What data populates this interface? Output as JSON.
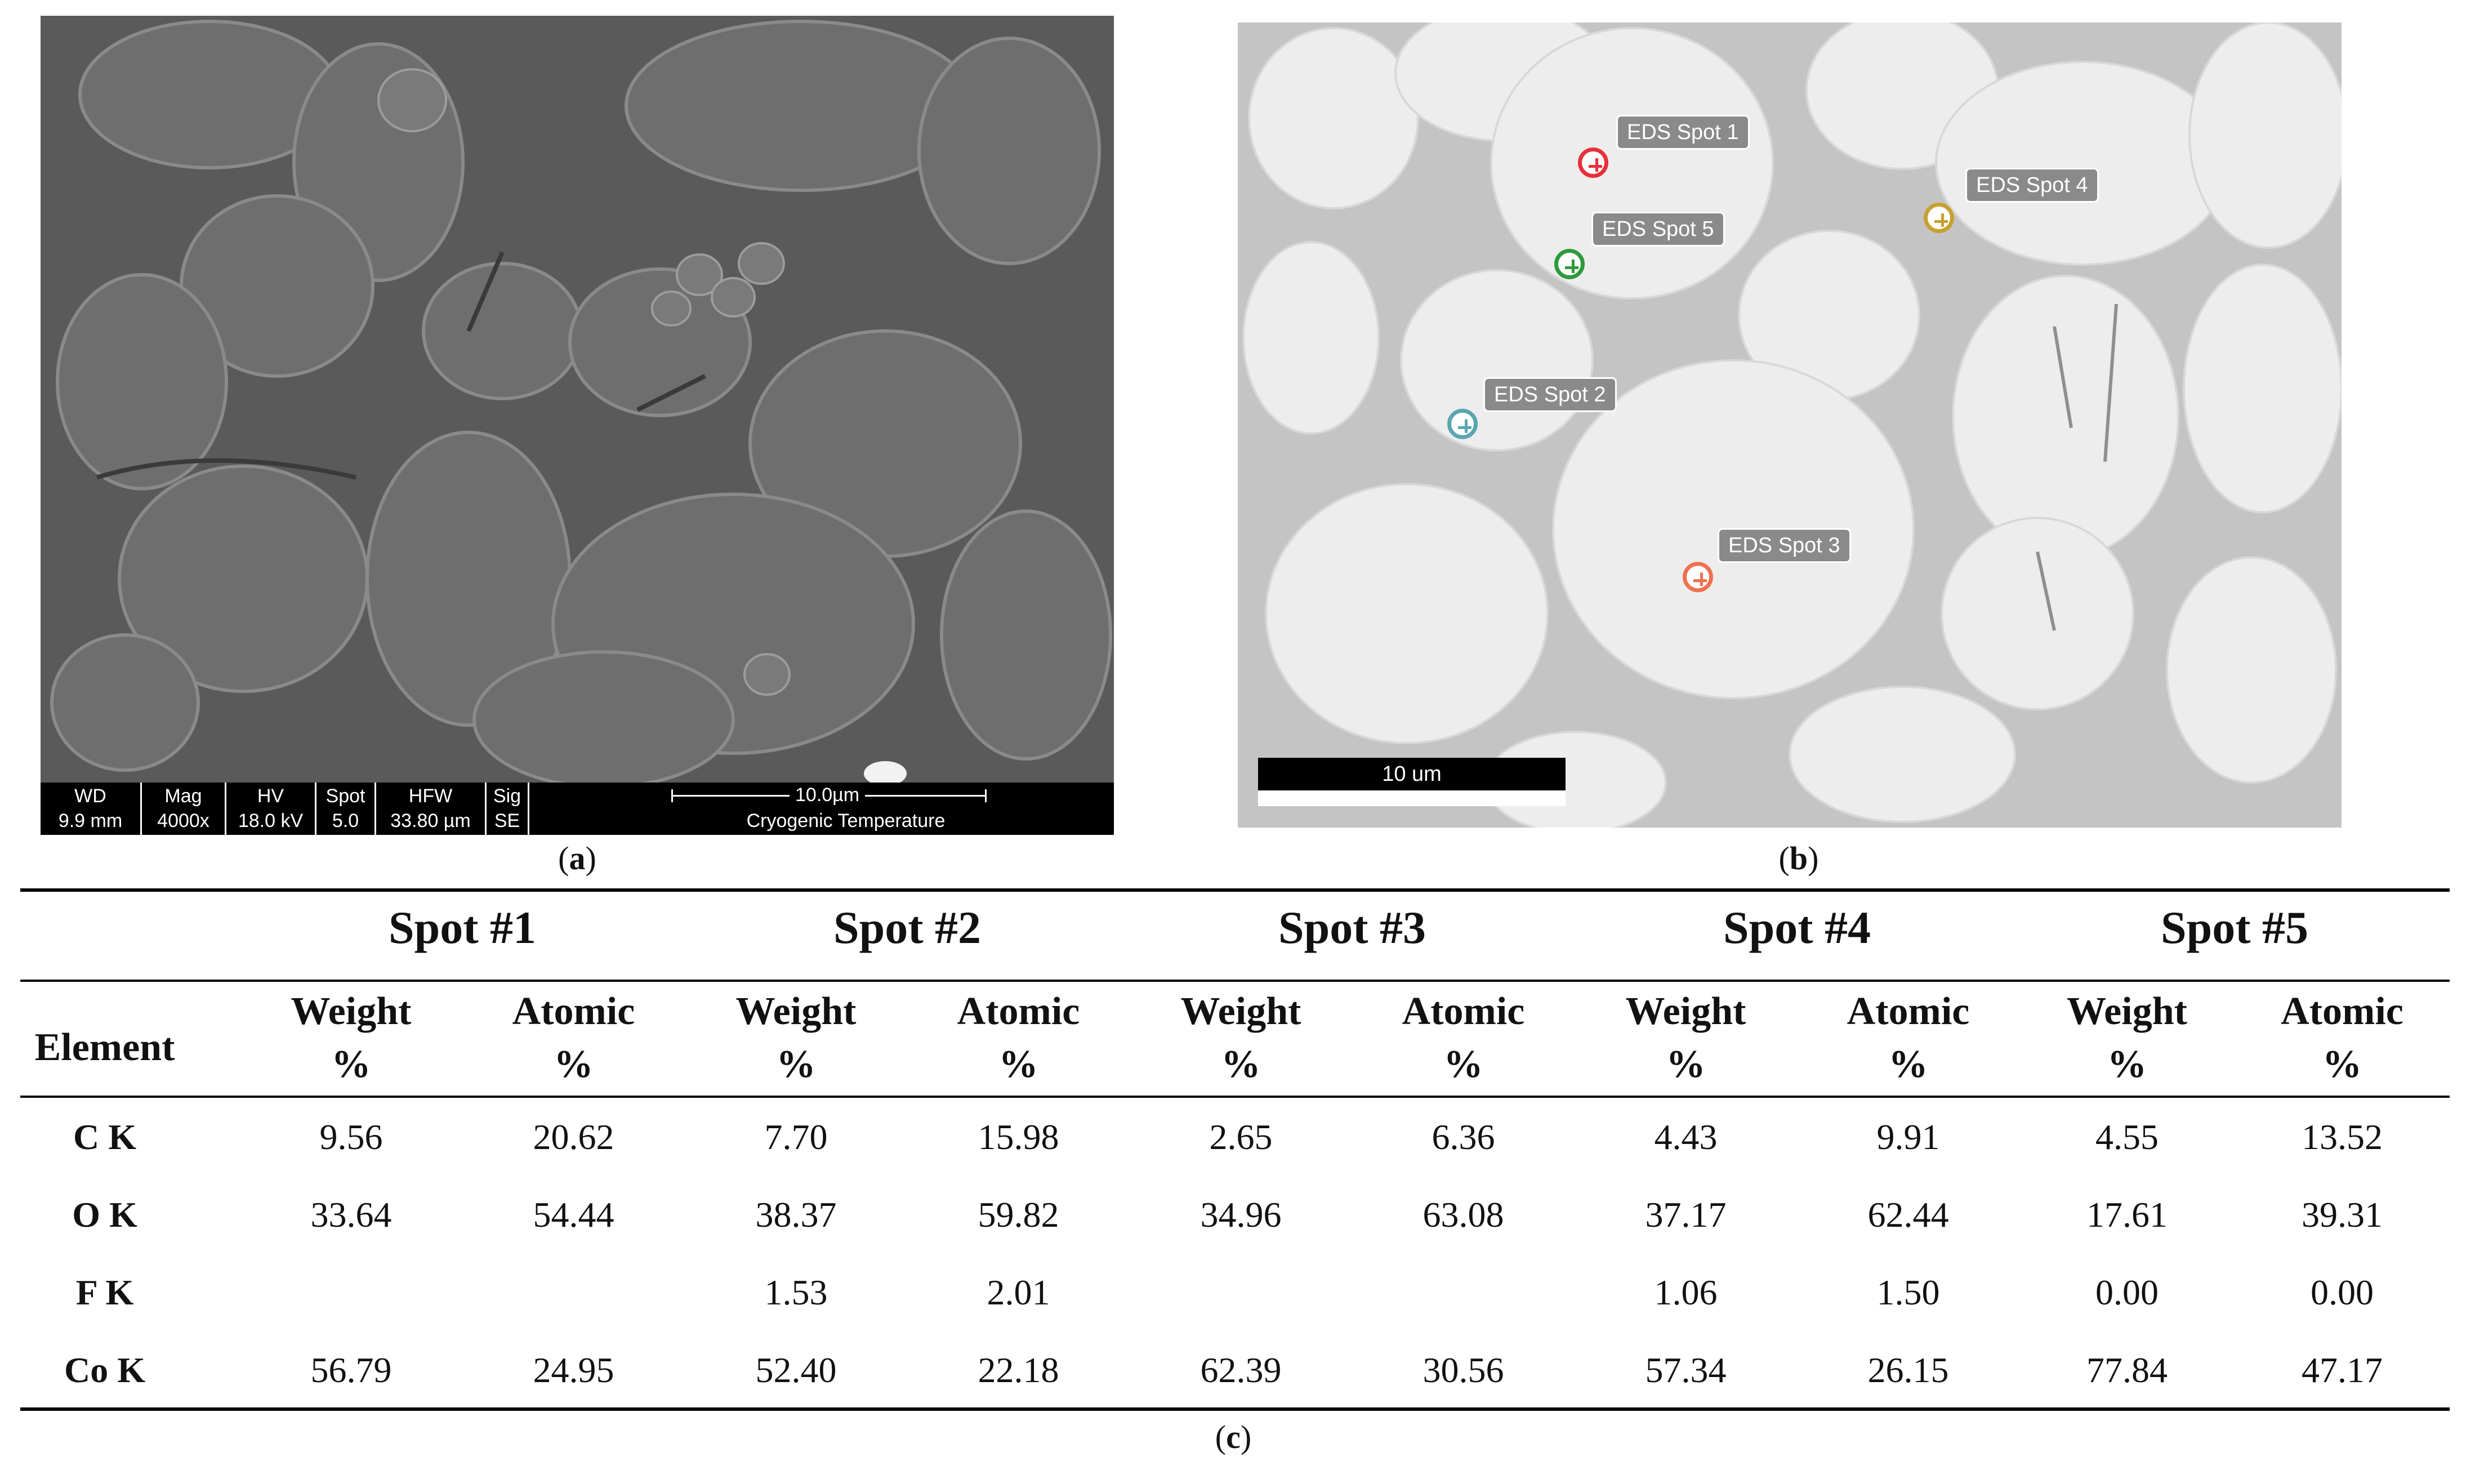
{
  "panel_a": {
    "info_bar": {
      "fields": [
        {
          "key": "WD",
          "value": "9.9 mm"
        },
        {
          "key": "Mag",
          "value": "4000x"
        },
        {
          "key": "HV",
          "value": "18.0 kV"
        },
        {
          "key": "Spot",
          "value": "5.0"
        },
        {
          "key": "HFW",
          "value": "33.80 µm"
        },
        {
          "key": "Sig",
          "value": "SE"
        }
      ],
      "scale_label": "10.0µm",
      "note": "Cryogenic Temperature"
    },
    "caption_letter": "a"
  },
  "panel_b": {
    "spots": [
      {
        "label": "EDS Spot 1",
        "color": "#e8303a"
      },
      {
        "label": "EDS Spot 2",
        "color": "#5aa6b0"
      },
      {
        "label": "EDS Spot 3",
        "color": "#f07050"
      },
      {
        "label": "EDS Spot 4",
        "color": "#c8a030"
      },
      {
        "label": "EDS Spot 5",
        "color": "#2f9a3a"
      }
    ],
    "scale_label": "10 um",
    "caption_letter": "b"
  },
  "table": {
    "element_header": "Element",
    "spot_headers": [
      "Spot #1",
      "Spot #2",
      "Spot #3",
      "Spot #4",
      "Spot #5"
    ],
    "sub_headers": [
      "Weight\n%",
      "Atomic\n%"
    ],
    "rows": [
      {
        "element": "C K",
        "values": [
          "9.56",
          "20.62",
          "7.70",
          "15.98",
          "2.65",
          "6.36",
          "4.43",
          "9.91",
          "4.55",
          "13.52"
        ]
      },
      {
        "element": "O K",
        "values": [
          "33.64",
          "54.44",
          "38.37",
          "59.82",
          "34.96",
          "63.08",
          "37.17",
          "62.44",
          "17.61",
          "39.31"
        ]
      },
      {
        "element": "F K",
        "values": [
          "",
          "",
          "1.53",
          "2.01",
          "",
          "",
          "1.06",
          "1.50",
          "0.00",
          "0.00"
        ]
      },
      {
        "element": "Co K",
        "values": [
          "56.79",
          "24.95",
          "52.40",
          "22.18",
          "62.39",
          "30.56",
          "57.34",
          "26.15",
          "77.84",
          "47.17"
        ]
      }
    ],
    "caption_letter": "c"
  }
}
